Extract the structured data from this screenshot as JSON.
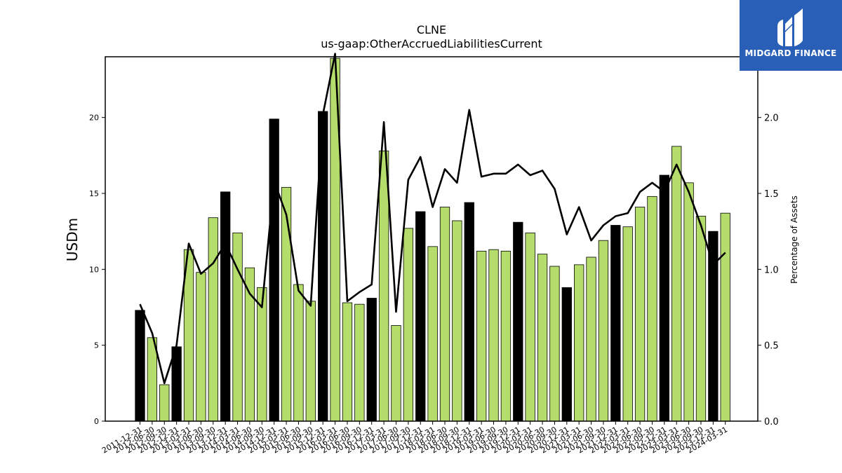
{
  "chart_data": {
    "type": "bar",
    "title": "CLNE",
    "subtitle": "us-gaap:OtherAccruedLiabilitiesCurrent",
    "ylabel": "USDm",
    "y2label": "Percentage of Assets",
    "ylim": [
      0,
      24
    ],
    "y2lim": [
      0,
      2.4
    ],
    "yticks": [
      0,
      5,
      10,
      15,
      20
    ],
    "y2ticks": [
      0.0,
      0.5,
      1.0,
      1.5,
      2.0
    ],
    "categories": [
      "2011-12-31",
      "2012-06-30",
      "2012-09-30",
      "2012-12-31",
      "2013-03-31",
      "2013-06-30",
      "2013-09-30",
      "2013-12-31",
      "2014-03-31",
      "2014-06-30",
      "2014-09-30",
      "2014-12-31",
      "2015-03-31",
      "2015-06-30",
      "2015-09-30",
      "2015-12-31",
      "2016-03-31",
      "2016-06-30",
      "2016-09-30",
      "2016-12-31",
      "2017-03-31",
      "2017-06-30",
      "2017-09-30",
      "2017-12-31",
      "2018-03-31",
      "2018-06-30",
      "2018-09-30",
      "2018-12-31",
      "2019-03-31",
      "2019-06-30",
      "2019-09-30",
      "2019-12-31",
      "2020-03-31",
      "2020-06-30",
      "2020-09-30",
      "2020-12-31",
      "2021-03-31",
      "2021-06-30",
      "2021-09-30",
      "2021-12-31",
      "2022-03-31",
      "2022-06-30",
      "2022-09-30",
      "2022-12-31",
      "2023-03-31",
      "2023-06-30",
      "2023-09-30",
      "2023-12-31",
      "2024-03-31"
    ],
    "series": [
      {
        "values": [
          7.3,
          5.5,
          2.4,
          4.9,
          11.3,
          9.8,
          13.4,
          15.1,
          12.4,
          10.1,
          8.8,
          19.9,
          15.4,
          9.0,
          7.9,
          20.4,
          23.9,
          7.8,
          7.7,
          8.1,
          17.8,
          6.3,
          12.7,
          13.8,
          11.5,
          14.1,
          13.2,
          14.4,
          11.2,
          11.3,
          11.2,
          13.1,
          12.4,
          11.0,
          10.2,
          8.8,
          10.3,
          10.8,
          11.9,
          12.9,
          12.8,
          14.1,
          14.8,
          16.2,
          18.1,
          15.7,
          13.5,
          12.5,
          13.7
        ],
        "fiscal_year_end": [
          true,
          false,
          false,
          true,
          false,
          false,
          false,
          true,
          false,
          false,
          false,
          true,
          false,
          false,
          false,
          true,
          false,
          false,
          false,
          true,
          false,
          false,
          false,
          true,
          false,
          false,
          false,
          true,
          false,
          false,
          false,
          true,
          false,
          false,
          false,
          true,
          false,
          false,
          false,
          true,
          false,
          false,
          false,
          true,
          false,
          false,
          false,
          true,
          false
        ],
        "color_quarter": "#b5dd6b",
        "color_fy": "#000000"
      },
      {
        "axis": "right",
        "type": "line",
        "color": "#000000",
        "values": [
          0.77,
          0.58,
          0.25,
          0.5,
          1.17,
          0.97,
          1.04,
          1.17,
          1.0,
          0.84,
          0.75,
          1.58,
          1.36,
          0.86,
          0.76,
          2.02,
          2.42,
          0.79,
          0.85,
          0.9,
          1.97,
          0.72,
          1.59,
          1.74,
          1.41,
          1.66,
          1.57,
          2.05,
          1.61,
          1.63,
          1.63,
          1.69,
          1.62,
          1.65,
          1.53,
          1.23,
          1.41,
          1.19,
          1.29,
          1.35,
          1.37,
          1.51,
          1.57,
          1.51,
          1.69,
          1.51,
          1.29,
          1.03,
          1.11
        ]
      }
    ],
    "grid": false,
    "legend": "none"
  },
  "brand": {
    "name": "MIDGARD FINANCE",
    "bg_color": "#2a5fb8"
  }
}
